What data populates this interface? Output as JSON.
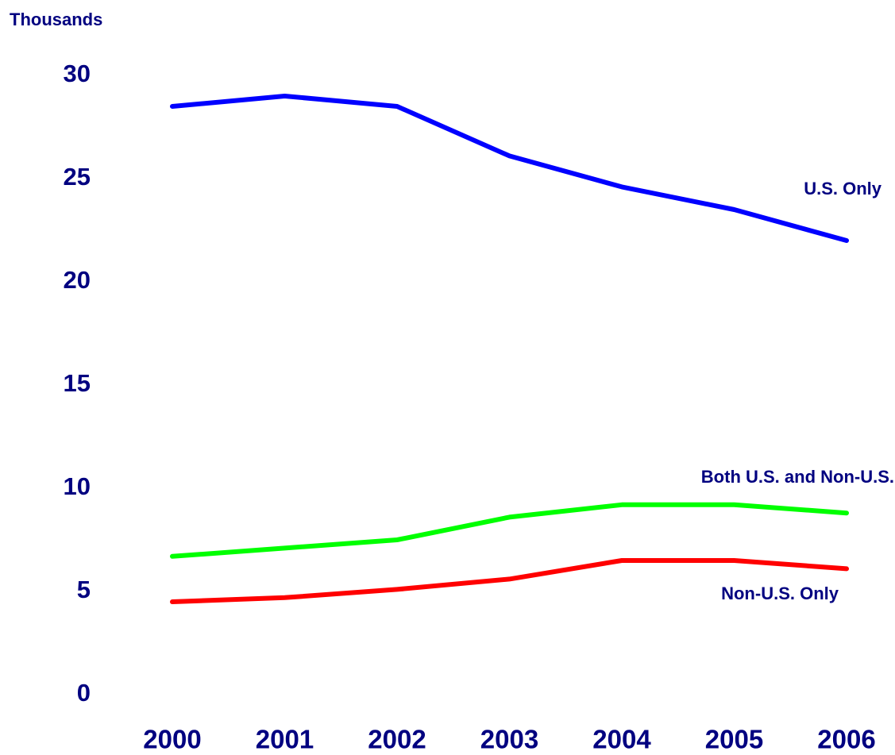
{
  "chart_data": {
    "type": "line",
    "y_axis_label": "Thousands",
    "categories": [
      "2000",
      "2001",
      "2002",
      "2003",
      "2004",
      "2005",
      "2006"
    ],
    "series": [
      {
        "name": "U.S. Only",
        "color": "#0000ff",
        "values": [
          28.5,
          29.0,
          28.5,
          26.1,
          24.6,
          23.5,
          22.0
        ]
      },
      {
        "name": "Both U.S. and Non-U.S.",
        "color": "#00ff00",
        "values": [
          6.7,
          7.1,
          7.5,
          8.6,
          9.2,
          9.2,
          8.8
        ]
      },
      {
        "name": "Non-U.S. Only",
        "color": "#ff0000",
        "values": [
          4.5,
          4.7,
          5.1,
          5.6,
          6.5,
          6.5,
          6.1
        ]
      }
    ],
    "ylim": [
      0,
      30
    ],
    "yticks": [
      0,
      5,
      10,
      15,
      20,
      25,
      30
    ],
    "grid": false
  }
}
